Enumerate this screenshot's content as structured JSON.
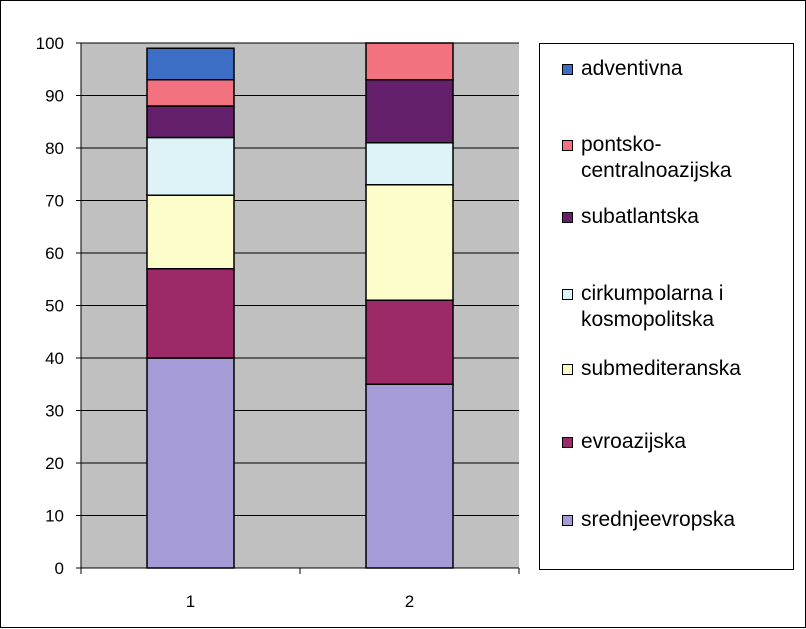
{
  "chart_data": {
    "type": "bar",
    "stacked": true,
    "categories": [
      "1",
      "2"
    ],
    "ylim": [
      0,
      100
    ],
    "yticks": [
      0,
      10,
      20,
      30,
      40,
      50,
      60,
      70,
      80,
      90,
      100
    ],
    "grid": true,
    "legend_position": "right",
    "plot_background": "#c0c0c0",
    "series": [
      {
        "name": "srednjeevropska",
        "values": [
          40,
          35
        ],
        "color": "#a59bd7"
      },
      {
        "name": "evroazijska",
        "values": [
          17,
          16
        ],
        "color": "#9c2a69"
      },
      {
        "name": "submediteranska",
        "values": [
          14,
          22
        ],
        "color": "#fdfccb"
      },
      {
        "name": "cirkumpolarna i kosmopolitska",
        "values": [
          11,
          8
        ],
        "color": "#ddf3f8"
      },
      {
        "name": "subatlantska",
        "values": [
          6,
          12
        ],
        "color": "#65206b"
      },
      {
        "name": "pontsko-centralnoazijska",
        "values": [
          5,
          7
        ],
        "color": "#f3727f"
      },
      {
        "name": "adventivna",
        "values": [
          6,
          0
        ],
        "color": "#3c6ec6"
      }
    ],
    "legend": [
      {
        "lines": [
          "adventivna"
        ],
        "color": "#3c6ec6"
      },
      {
        "lines": [
          "pontsko-",
          "centralnoazijska"
        ],
        "color": "#f3727f"
      },
      {
        "lines": [
          "subatlantska"
        ],
        "color": "#65206b"
      },
      {
        "lines": [
          "cirkumpolarna i",
          "kosmopolitska"
        ],
        "color": "#ddf3f8"
      },
      {
        "lines": [
          "submediteranska"
        ],
        "color": "#fdfccb"
      },
      {
        "lines": [
          "evroazijska"
        ],
        "color": "#9c2a69"
      },
      {
        "lines": [
          "srednjeevropska"
        ],
        "color": "#a59bd7"
      }
    ]
  }
}
